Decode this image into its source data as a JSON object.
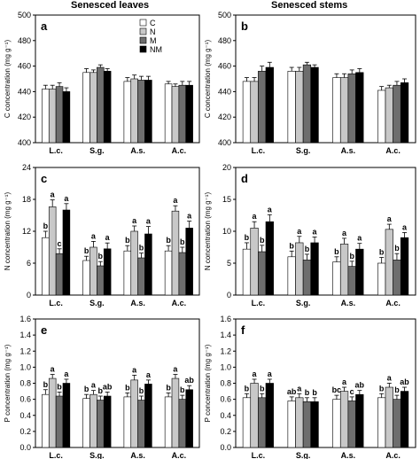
{
  "column_titles": [
    "Senesced leaves",
    "Senesced stems"
  ],
  "colors": {
    "C": "#ffffff",
    "N": "#c8c8c8",
    "M": "#6e6e6e",
    "NM": "#000000"
  },
  "chart_data": [
    {
      "panel": "a",
      "type": "bar",
      "ylabel": "C concentration (mg g⁻¹)",
      "categories": [
        "L.c.",
        "S.g.",
        "A.s.",
        "A.c."
      ],
      "ylim": [
        400,
        500
      ],
      "yticks": [
        400,
        420,
        440,
        460,
        480,
        500
      ],
      "legend": [
        "C",
        "N",
        "M",
        "NM"
      ],
      "series": [
        {
          "name": "C",
          "values": [
            442,
            455,
            448,
            446
          ],
          "errors": [
            3,
            3,
            3,
            2
          ]
        },
        {
          "name": "N",
          "values": [
            442,
            455,
            450,
            444
          ],
          "errors": [
            3,
            2,
            3,
            2
          ]
        },
        {
          "name": "M",
          "values": [
            444,
            459,
            449,
            445
          ],
          "errors": [
            3,
            2,
            3,
            3
          ]
        },
        {
          "name": "NM",
          "values": [
            440,
            456,
            449,
            445
          ],
          "errors": [
            3,
            2,
            3,
            3
          ]
        }
      ]
    },
    {
      "panel": "b",
      "type": "bar",
      "ylabel": "C concentration (mg g⁻¹)",
      "categories": [
        "L.c.",
        "S.g.",
        "A.s.",
        "A.c."
      ],
      "ylim": [
        400,
        500
      ],
      "yticks": [
        400,
        420,
        440,
        460,
        480,
        500
      ],
      "series": [
        {
          "name": "C",
          "values": [
            448,
            456,
            451,
            441
          ],
          "errors": [
            3,
            3,
            3,
            3
          ]
        },
        {
          "name": "N",
          "values": [
            448,
            456,
            451,
            443
          ],
          "errors": [
            3,
            3,
            3,
            2
          ]
        },
        {
          "name": "M",
          "values": [
            456,
            461,
            454,
            445
          ],
          "errors": [
            4,
            2,
            3,
            3
          ]
        },
        {
          "name": "NM",
          "values": [
            459,
            459,
            455,
            447
          ],
          "errors": [
            4,
            2,
            3,
            3
          ]
        }
      ]
    },
    {
      "panel": "c",
      "type": "bar",
      "ylabel": "N concentration (mg g⁻¹)",
      "categories": [
        "L.c.",
        "S.g.",
        "A.s.",
        "A.c."
      ],
      "ylim": [
        0,
        24
      ],
      "yticks": [
        0,
        6,
        12,
        18,
        24
      ],
      "series": [
        {
          "name": "C",
          "values": [
            10.8,
            6.5,
            8.3,
            8.3
          ],
          "errors": [
            1.2,
            0.8,
            1.0,
            1.0
          ],
          "letters": [
            "b",
            "b",
            "b",
            "b"
          ]
        },
        {
          "name": "N",
          "values": [
            16.6,
            9.0,
            12.0,
            15.8
          ],
          "errors": [
            1.3,
            1.1,
            1.0,
            1.0
          ],
          "letters": [
            "a",
            "a",
            "a",
            "a"
          ]
        },
        {
          "name": "M",
          "values": [
            7.8,
            5.5,
            7.0,
            8.0
          ],
          "errors": [
            0.9,
            0.8,
            0.9,
            1.0
          ],
          "letters": [
            "c",
            "b",
            "b",
            "b"
          ]
        },
        {
          "name": "NM",
          "values": [
            16.0,
            8.7,
            11.5,
            12.6
          ],
          "errors": [
            1.2,
            1.1,
            1.4,
            1.3
          ],
          "letters": [
            "a",
            "a",
            "a",
            "a"
          ]
        }
      ]
    },
    {
      "panel": "d",
      "type": "bar",
      "ylabel": "N concentration (mg g⁻¹)",
      "categories": [
        "L.c.",
        "S.g.",
        "A.s.",
        "A.c."
      ],
      "ylim": [
        0,
        20
      ],
      "yticks": [
        0,
        5,
        10,
        15,
        20
      ],
      "series": [
        {
          "name": "C",
          "values": [
            7.2,
            6.0,
            5.2,
            5.0
          ],
          "errors": [
            1.0,
            0.9,
            0.8,
            0.9
          ],
          "letters": [
            "b",
            "b",
            "b",
            "b"
          ]
        },
        {
          "name": "N",
          "values": [
            10.5,
            8.2,
            8.0,
            10.3
          ],
          "errors": [
            1.0,
            1.0,
            0.9,
            0.8
          ],
          "letters": [
            "a",
            "a",
            "a",
            "a"
          ]
        },
        {
          "name": "M",
          "values": [
            6.8,
            5.5,
            4.5,
            5.5
          ],
          "errors": [
            1.0,
            0.9,
            0.8,
            1.0
          ],
          "letters": [
            "b",
            "b",
            "b",
            "b"
          ]
        },
        {
          "name": "NM",
          "values": [
            11.5,
            8.2,
            7.2,
            9.0
          ],
          "errors": [
            1.1,
            0.9,
            0.9,
            0.8
          ],
          "letters": [
            "a",
            "a",
            "a",
            "a"
          ]
        }
      ]
    },
    {
      "panel": "e",
      "type": "bar",
      "ylabel": "P concentration (mg g⁻¹)",
      "categories": [
        "L.c.",
        "S.g.",
        "A.s.",
        "A.c."
      ],
      "ylim": [
        0,
        1.6
      ],
      "yticks": [
        0.0,
        0.2,
        0.4,
        0.6,
        0.8,
        1.0,
        1.2,
        1.4,
        1.6
      ],
      "series": [
        {
          "name": "C",
          "values": [
            0.66,
            0.61,
            0.63,
            0.63
          ],
          "errors": [
            0.06,
            0.05,
            0.05,
            0.05
          ],
          "letters": [
            "b",
            "b",
            "b",
            "b"
          ]
        },
        {
          "name": "N",
          "values": [
            0.86,
            0.66,
            0.84,
            0.86
          ],
          "errors": [
            0.05,
            0.05,
            0.06,
            0.05
          ],
          "letters": [
            "a",
            "a",
            "a",
            "a"
          ]
        },
        {
          "name": "M",
          "values": [
            0.64,
            0.59,
            0.59,
            0.6
          ],
          "errors": [
            0.05,
            0.05,
            0.05,
            0.05
          ],
          "letters": [
            "b",
            "b",
            "b",
            "b"
          ]
        },
        {
          "name": "NM",
          "values": [
            0.8,
            0.64,
            0.79,
            0.72
          ],
          "errors": [
            0.05,
            0.05,
            0.05,
            0.05
          ],
          "letters": [
            "a",
            "ab",
            "a",
            "ab"
          ]
        }
      ]
    },
    {
      "panel": "f",
      "type": "bar",
      "ylabel": "P concentration (mg g⁻¹)",
      "categories": [
        "L.c.",
        "S.g.",
        "A.s.",
        "A.c."
      ],
      "ylim": [
        0,
        1.6
      ],
      "yticks": [
        0.0,
        0.2,
        0.4,
        0.6,
        0.8,
        1.0,
        1.2,
        1.4,
        1.6
      ],
      "series": [
        {
          "name": "C",
          "values": [
            0.62,
            0.58,
            0.6,
            0.62
          ],
          "errors": [
            0.05,
            0.05,
            0.05,
            0.05
          ],
          "letters": [
            "b",
            "ab",
            "bc",
            "b"
          ]
        },
        {
          "name": "N",
          "values": [
            0.8,
            0.62,
            0.7,
            0.75
          ],
          "errors": [
            0.05,
            0.05,
            0.05,
            0.05
          ],
          "letters": [
            "a",
            "a",
            "a",
            "a"
          ]
        },
        {
          "name": "M",
          "values": [
            0.62,
            0.57,
            0.58,
            0.6
          ],
          "errors": [
            0.05,
            0.05,
            0.05,
            0.05
          ],
          "letters": [
            "b",
            "b",
            "c",
            "b"
          ]
        },
        {
          "name": "NM",
          "values": [
            0.8,
            0.57,
            0.66,
            0.7
          ],
          "errors": [
            0.05,
            0.05,
            0.05,
            0.05
          ],
          "letters": [
            "a",
            "b",
            "ab",
            "ab"
          ]
        }
      ]
    }
  ]
}
